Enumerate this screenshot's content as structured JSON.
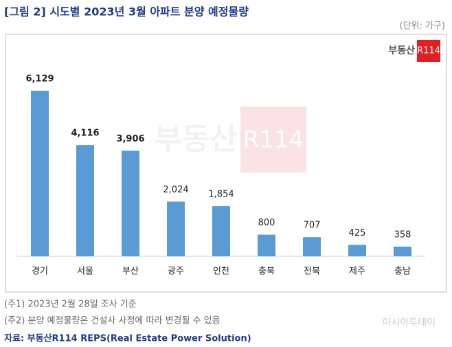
{
  "chart_data": {
    "type": "bar",
    "title": "[그림 2] 시도별 2023년 3월 아파트 분양 예정물량",
    "unit": "(단위: 가구)",
    "categories": [
      "경기",
      "서울",
      "부산",
      "광주",
      "인천",
      "충북",
      "전북",
      "제주",
      "충남"
    ],
    "values": [
      6129,
      4116,
      3906,
      2024,
      1854,
      800,
      707,
      425,
      358
    ],
    "value_labels": [
      "6,129",
      "4,116",
      "3,906",
      "2,024",
      "1,854",
      "800",
      "707",
      "425",
      "358"
    ],
    "color": "#5b9bd5",
    "logo": {
      "text": "부동산",
      "badge": "R114"
    },
    "notes": [
      "(주1) 2023년 2월 28일 조사 기준",
      "(주2) 분양 예정물량은 건설사 사정에 따라 변경될 수 있음"
    ],
    "source": "자료: 부동산R114 REPS(Real Estate Power Solution)",
    "watermark": "아시아투데이"
  }
}
